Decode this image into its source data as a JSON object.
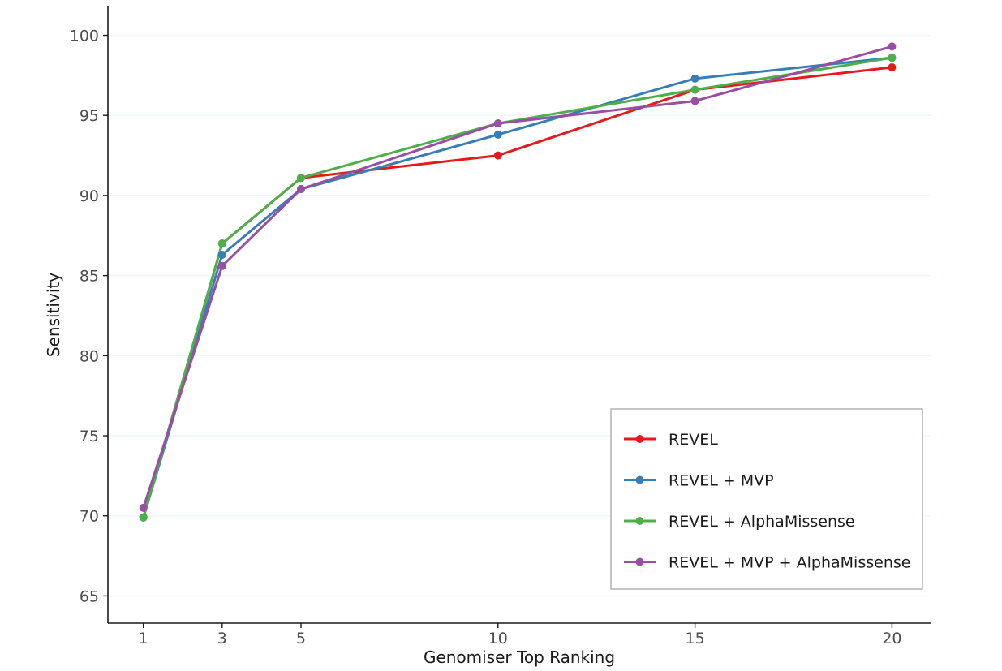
{
  "chart_data": {
    "type": "line",
    "xlabel": "Genomiser Top Ranking",
    "ylabel": "Sensitivity",
    "x": [
      1,
      3,
      5,
      10,
      15,
      20
    ],
    "xticks": [
      "1",
      "3",
      "5",
      "10",
      "15",
      "20"
    ],
    "xlim": [
      0.1,
      21
    ],
    "ylim": [
      63.3,
      101.8
    ],
    "yticks": [
      "65",
      "70",
      "75",
      "80",
      "85",
      "90",
      "95",
      "100"
    ],
    "grid": true,
    "legend_position": "bottom-right",
    "series": [
      {
        "name": "REVEL",
        "color": "#e41a1c",
        "values": [
          69.9,
          87.0,
          91.1,
          92.5,
          96.6,
          98.0
        ]
      },
      {
        "name": "REVEL + MVP",
        "color": "#377eb8",
        "values": [
          69.9,
          86.3,
          90.4,
          93.8,
          97.3,
          98.6
        ]
      },
      {
        "name": "REVEL + AlphaMissense",
        "color": "#4daf4a",
        "values": [
          69.9,
          87.0,
          91.1,
          94.5,
          96.6,
          98.6
        ]
      },
      {
        "name": "REVEL + MVP + AlphaMissense",
        "color": "#984ea3",
        "values": [
          70.5,
          85.6,
          90.4,
          94.5,
          95.9,
          99.3
        ]
      }
    ]
  }
}
